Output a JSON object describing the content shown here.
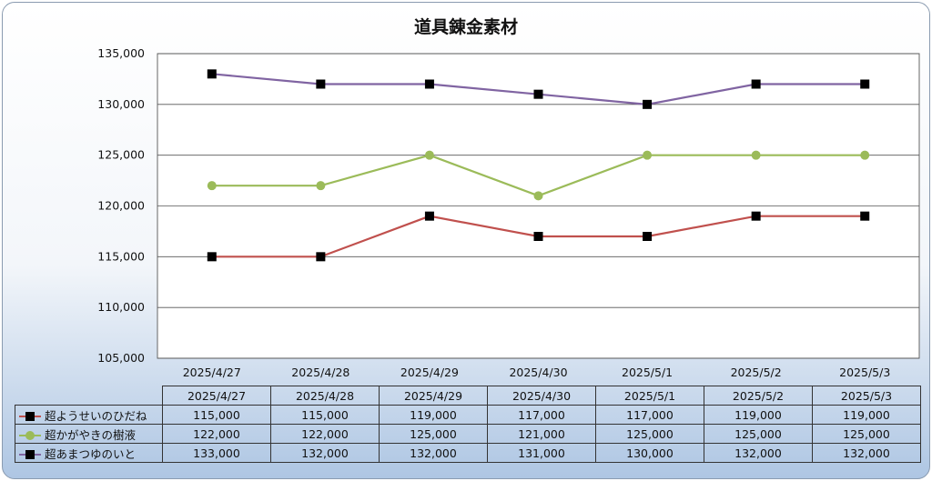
{
  "chart_data": {
    "type": "line",
    "title": "道具錬金素材",
    "categories": [
      "2025/4/27",
      "2025/4/28",
      "2025/4/29",
      "2025/4/30",
      "2025/5/1",
      "2025/5/2",
      "2025/5/3"
    ],
    "yticks": [
      "105,000",
      "110,000",
      "115,000",
      "120,000",
      "125,000",
      "130,000",
      "135,000"
    ],
    "ylim": [
      105000,
      135000
    ],
    "grid": true,
    "legend": "data-table",
    "series": [
      {
        "name": "超ようせいのひだね",
        "values": [
          115000,
          115000,
          119000,
          117000,
          117000,
          119000,
          119000
        ],
        "labels": [
          "115,000",
          "115,000",
          "119,000",
          "117,000",
          "117,000",
          "119,000",
          "119,000"
        ],
        "color": "#c0504d",
        "marker": "square"
      },
      {
        "name": "超かがやきの樹液",
        "values": [
          122000,
          122000,
          125000,
          121000,
          125000,
          125000,
          125000
        ],
        "labels": [
          "122,000",
          "122,000",
          "125,000",
          "121,000",
          "125,000",
          "125,000",
          "125,000"
        ],
        "color": "#9bbb59",
        "marker": "circle"
      },
      {
        "name": "超あまつゆのいと",
        "values": [
          133000,
          132000,
          132000,
          131000,
          130000,
          132000,
          132000
        ],
        "labels": [
          "133,000",
          "132,000",
          "132,000",
          "131,000",
          "130,000",
          "132,000",
          "132,000"
        ],
        "color": "#8064a2",
        "marker": "square"
      }
    ]
  }
}
